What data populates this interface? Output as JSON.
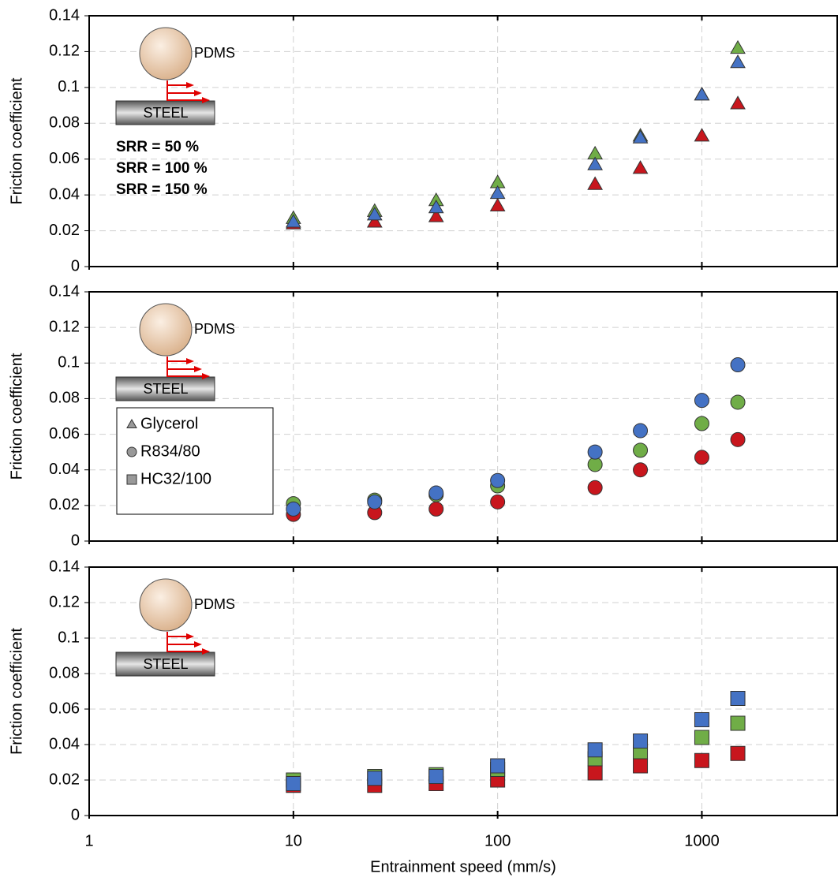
{
  "chart_data": [
    {
      "type": "scatter",
      "marker": "triangle",
      "xscale": "log",
      "grid": true,
      "ylabel": "Friction coefficient",
      "inset_labels": [
        "PDMS",
        "STEEL"
      ],
      "xlim": [
        1,
        4600
      ],
      "xticks": [
        1,
        10,
        100,
        1000
      ],
      "ylim": [
        0,
        0.14
      ],
      "yticks": [
        0,
        0.02,
        0.04,
        0.06,
        0.08,
        0.1,
        0.12,
        0.14
      ],
      "x": [
        10,
        25,
        50,
        100,
        300,
        500,
        1000,
        1500
      ],
      "series": [
        {
          "name": "SRR = 50 %",
          "color": "#c8161d",
          "values": [
            0.024,
            0.025,
            0.028,
            0.034,
            0.046,
            0.055,
            0.073,
            0.091
          ]
        },
        {
          "name": "SRR = 100 %",
          "color": "#70ad47",
          "values": [
            0.027,
            0.031,
            0.037,
            0.047,
            0.063,
            0.073,
            0.096,
            0.122
          ]
        },
        {
          "name": "SRR = 150 %",
          "color": "#4472c4",
          "values": [
            0.025,
            0.029,
            0.033,
            0.041,
            0.057,
            0.072,
            0.096,
            0.114
          ]
        }
      ]
    },
    {
      "type": "scatter",
      "marker": "circle",
      "xscale": "log",
      "grid": true,
      "ylabel": "Friction coefficient",
      "inset_labels": [
        "PDMS",
        "STEEL"
      ],
      "marker_legend": [
        {
          "label": "Glycerol",
          "marker": "triangle"
        },
        {
          "label": "R834/80",
          "marker": "circle"
        },
        {
          "label": "HC32/100",
          "marker": "square"
        }
      ],
      "xlim": [
        1,
        4600
      ],
      "xticks": [
        1,
        10,
        100,
        1000
      ],
      "ylim": [
        0,
        0.14
      ],
      "yticks": [
        0,
        0.02,
        0.04,
        0.06,
        0.08,
        0.1,
        0.12,
        0.14
      ],
      "x": [
        10,
        25,
        50,
        100,
        300,
        500,
        1000,
        1500
      ],
      "series": [
        {
          "color": "#c8161d",
          "values": [
            0.015,
            0.016,
            0.018,
            0.022,
            0.03,
            0.04,
            0.047,
            0.057
          ]
        },
        {
          "color": "#70ad47",
          "values": [
            0.021,
            0.023,
            0.026,
            0.031,
            0.043,
            0.051,
            0.066,
            0.078
          ]
        },
        {
          "color": "#4472c4",
          "values": [
            0.018,
            0.022,
            0.027,
            0.034,
            0.05,
            0.062,
            0.079,
            0.099
          ]
        }
      ]
    },
    {
      "type": "scatter",
      "marker": "square",
      "xscale": "log",
      "grid": true,
      "ylabel": "Friction coefficient",
      "xlabel": "Entrainment speed (mm/s)",
      "inset_labels": [
        "PDMS",
        "STEEL"
      ],
      "xlim": [
        1,
        4600
      ],
      "xticks": [
        1,
        10,
        100,
        1000
      ],
      "ylim": [
        0,
        0.14
      ],
      "yticks": [
        0,
        0.02,
        0.04,
        0.06,
        0.08,
        0.1,
        0.12,
        0.14
      ],
      "x": [
        10,
        25,
        50,
        100,
        300,
        500,
        1000,
        1500
      ],
      "series": [
        {
          "color": "#c8161d",
          "values": [
            0.017,
            0.017,
            0.018,
            0.02,
            0.024,
            0.028,
            0.031,
            0.035
          ]
        },
        {
          "color": "#70ad47",
          "values": [
            0.02,
            0.022,
            0.023,
            0.026,
            0.032,
            0.036,
            0.044,
            0.052
          ]
        },
        {
          "color": "#4472c4",
          "values": [
            0.018,
            0.021,
            0.022,
            0.028,
            0.037,
            0.042,
            0.054,
            0.066
          ]
        }
      ]
    }
  ]
}
